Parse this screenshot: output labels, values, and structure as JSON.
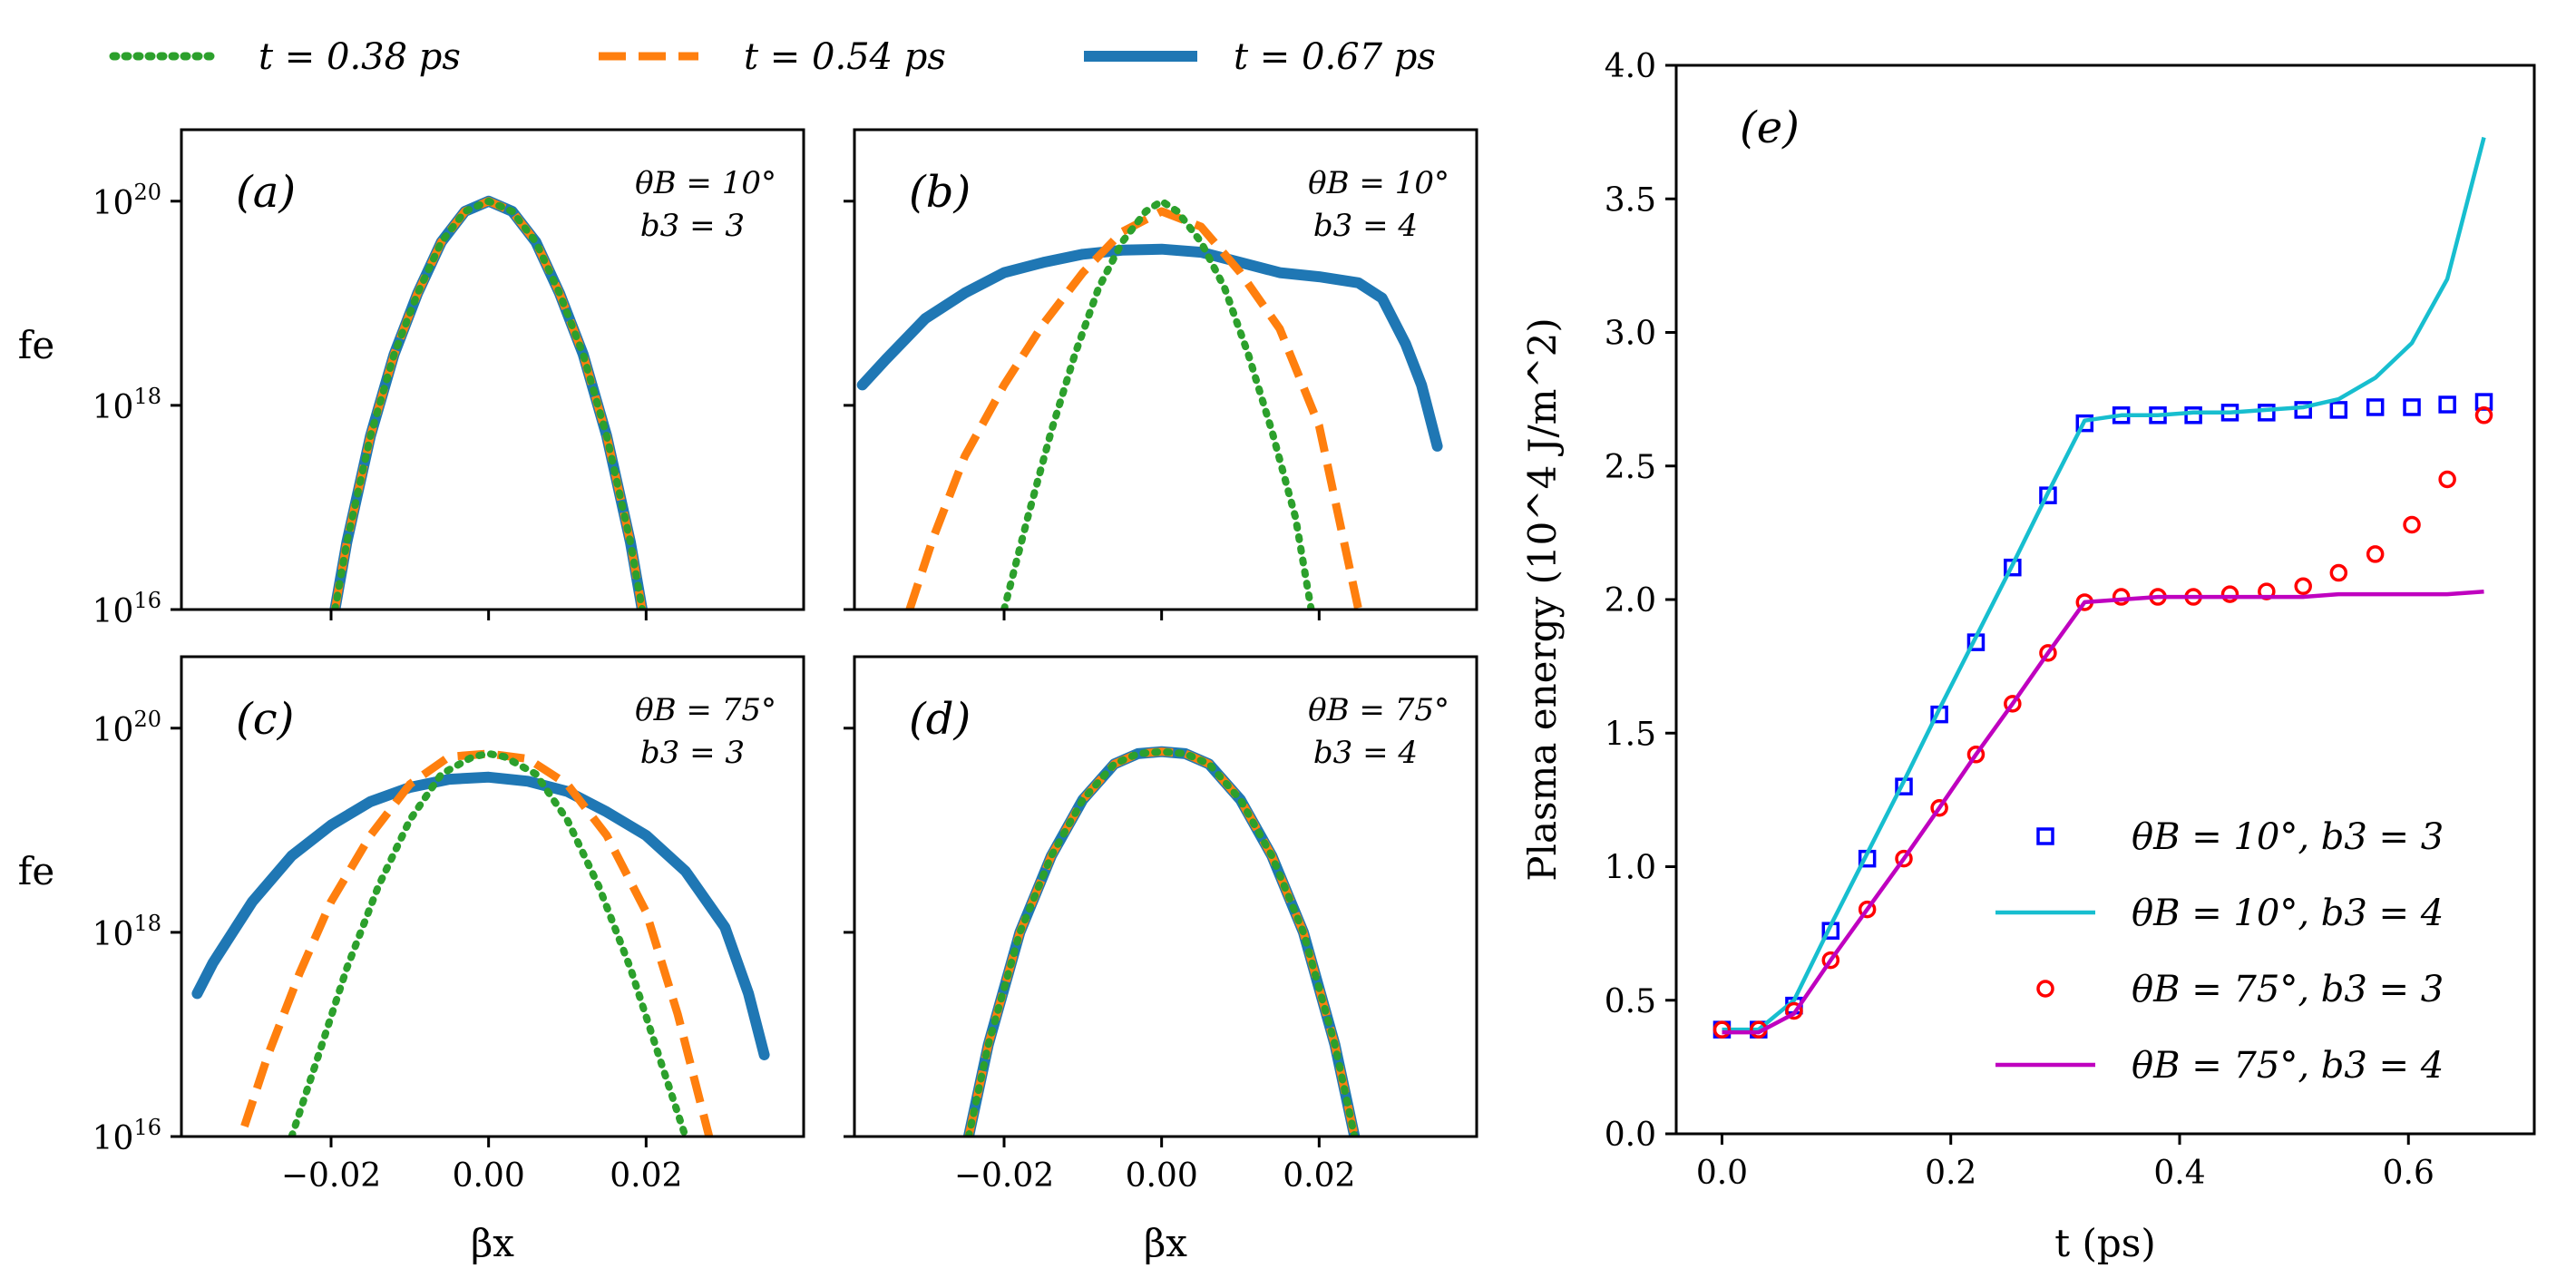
{
  "legend_top": [
    {
      "label": "t = 0.38 ps",
      "color": "#2ca02c",
      "style": "dotted"
    },
    {
      "label": "t = 0.54 ps",
      "color": "#ff7f0e",
      "style": "dashed"
    },
    {
      "label": "t = 0.67 ps",
      "color": "#1f77b4",
      "style": "solid"
    }
  ],
  "panels": [
    {
      "tag": "(a)",
      "theta": "θB = 10°",
      "b3": "b3 = 3"
    },
    {
      "tag": "(b)",
      "theta": "θB = 10°",
      "b3": "b3 = 4"
    },
    {
      "tag": "(c)",
      "theta": "θB = 75°",
      "b3": "b3 = 3"
    },
    {
      "tag": "(d)",
      "theta": "θB = 75°",
      "b3": "b3 = 4"
    }
  ],
  "dist_axes": {
    "ylabel": "fe",
    "xlabel": "βx",
    "xticks": [
      "−0.02",
      "0.00",
      "0.02"
    ],
    "yticks": [
      "10^20",
      "10^18",
      "10^16"
    ]
  },
  "chart_data": [
    {
      "type": "line",
      "panel": "a",
      "title": "(a) θB = 10°, b3 = 3",
      "xlabel": "βx",
      "ylabel": "fe",
      "xlim": [
        -0.039,
        0.04
      ],
      "ylim_log10": [
        16,
        20.7
      ],
      "series": [
        {
          "name": "t = 0.38 ps",
          "x": [
            -0.0195,
            -0.018,
            -0.015,
            -0.012,
            -0.009,
            -0.006,
            -0.003,
            0.0,
            0.003,
            0.006,
            0.009,
            0.012,
            0.015,
            0.018,
            0.0195
          ],
          "log10_y": [
            16.0,
            16.66,
            17.7,
            18.5,
            19.1,
            19.6,
            19.9,
            20.0,
            19.9,
            19.6,
            19.1,
            18.5,
            17.7,
            16.66,
            16.0
          ]
        },
        {
          "name": "t = 0.54 ps",
          "x": [
            -0.0195,
            -0.018,
            -0.015,
            -0.012,
            -0.009,
            -0.006,
            -0.003,
            0.0,
            0.003,
            0.006,
            0.009,
            0.012,
            0.015,
            0.018,
            0.0195
          ],
          "log10_y": [
            16.0,
            16.66,
            17.7,
            18.5,
            19.1,
            19.6,
            19.9,
            20.0,
            19.9,
            19.6,
            19.1,
            18.5,
            17.7,
            16.66,
            16.0
          ]
        },
        {
          "name": "t = 0.67 ps",
          "x": [
            -0.0195,
            -0.018,
            -0.015,
            -0.012,
            -0.009,
            -0.006,
            -0.003,
            0.0,
            0.003,
            0.006,
            0.009,
            0.012,
            0.015,
            0.018,
            0.0195
          ],
          "log10_y": [
            16.0,
            16.66,
            17.7,
            18.5,
            19.1,
            19.6,
            19.9,
            20.0,
            19.9,
            19.6,
            19.1,
            18.5,
            17.7,
            16.66,
            16.0
          ]
        }
      ]
    },
    {
      "type": "line",
      "panel": "b",
      "title": "(b) θB = 10°, b3 = 4",
      "xlabel": "βx",
      "ylabel": "fe",
      "xlim": [
        -0.039,
        0.04
      ],
      "ylim_log10": [
        16,
        20.7
      ],
      "series": [
        {
          "name": "t = 0.38 ps",
          "x": [
            -0.02,
            -0.017,
            -0.014,
            -0.011,
            -0.008,
            -0.005,
            -0.002,
            0.0,
            0.002,
            0.005,
            0.008,
            0.011,
            0.014,
            0.017,
            0.019
          ],
          "log10_y": [
            16.0,
            16.9,
            17.75,
            18.5,
            19.15,
            19.6,
            19.9,
            20.0,
            19.9,
            19.6,
            19.15,
            18.5,
            17.75,
            16.9,
            16.0
          ]
        },
        {
          "name": "t = 0.54 ps",
          "x": [
            -0.032,
            -0.029,
            -0.025,
            -0.02,
            -0.015,
            -0.01,
            -0.005,
            0.0,
            0.005,
            0.01,
            0.015,
            0.02,
            0.025
          ],
          "log10_y": [
            16.0,
            16.7,
            17.5,
            18.2,
            18.8,
            19.3,
            19.7,
            19.9,
            19.75,
            19.3,
            18.75,
            17.8,
            16.0
          ]
        },
        {
          "name": "t = 0.67 ps",
          "x": [
            -0.038,
            -0.035,
            -0.03,
            -0.025,
            -0.02,
            -0.015,
            -0.01,
            -0.005,
            0.0,
            0.005,
            0.01,
            0.015,
            0.02,
            0.025,
            0.028,
            0.031,
            0.033,
            0.035
          ],
          "log10_y": [
            18.2,
            18.45,
            18.85,
            19.1,
            19.3,
            19.4,
            19.48,
            19.52,
            19.53,
            19.5,
            19.4,
            19.3,
            19.26,
            19.2,
            19.05,
            18.6,
            18.2,
            17.6
          ]
        }
      ]
    },
    {
      "type": "line",
      "panel": "c",
      "title": "(c) θB = 75°, b3 = 3",
      "xlabel": "βx",
      "ylabel": "fe",
      "xlim": [
        -0.039,
        0.04
      ],
      "ylim_log10": [
        16,
        20.7
      ],
      "series": [
        {
          "name": "t = 0.38 ps",
          "x": [
            -0.025,
            -0.022,
            -0.018,
            -0.014,
            -0.01,
            -0.006,
            -0.002,
            0.0,
            0.002,
            0.006,
            0.01,
            0.014,
            0.018,
            0.022,
            0.025
          ],
          "log10_y": [
            16.0,
            16.7,
            17.65,
            18.45,
            19.1,
            19.55,
            19.72,
            19.75,
            19.72,
            19.55,
            19.1,
            18.45,
            17.65,
            16.7,
            16.0
          ]
        },
        {
          "name": "t = 0.54 ps",
          "x": [
            -0.031,
            -0.028,
            -0.024,
            -0.02,
            -0.015,
            -0.01,
            -0.005,
            0.0,
            0.005,
            0.01,
            0.015,
            0.02,
            0.024,
            0.027,
            0.028
          ],
          "log10_y": [
            16.1,
            16.8,
            17.6,
            18.3,
            18.95,
            19.45,
            19.72,
            19.75,
            19.7,
            19.45,
            18.95,
            18.2,
            17.2,
            16.3,
            16.0
          ]
        },
        {
          "name": "t = 0.67 ps",
          "x": [
            -0.037,
            -0.035,
            -0.03,
            -0.025,
            -0.02,
            -0.015,
            -0.01,
            -0.005,
            0.0,
            0.005,
            0.01,
            0.015,
            0.02,
            0.025,
            0.03,
            0.033,
            0.035
          ],
          "log10_y": [
            17.4,
            17.7,
            18.3,
            18.75,
            19.05,
            19.28,
            19.42,
            19.5,
            19.52,
            19.48,
            19.38,
            19.18,
            18.95,
            18.6,
            18.05,
            17.4,
            16.8
          ]
        }
      ]
    },
    {
      "type": "line",
      "panel": "d",
      "title": "(d) θB = 75°, b3 = 4",
      "xlabel": "βx",
      "ylabel": "fe",
      "xlim": [
        -0.039,
        0.04
      ],
      "ylim_log10": [
        16,
        20.7
      ],
      "series": [
        {
          "name": "t = 0.38 ps",
          "x": [
            -0.0245,
            -0.022,
            -0.018,
            -0.014,
            -0.01,
            -0.006,
            -0.003,
            0.0,
            0.003,
            0.006,
            0.01,
            0.014,
            0.018,
            0.022,
            0.0245
          ],
          "log10_y": [
            16.0,
            16.9,
            18.0,
            18.75,
            19.3,
            19.65,
            19.75,
            19.77,
            19.75,
            19.65,
            19.3,
            18.75,
            18.0,
            16.9,
            16.0
          ]
        },
        {
          "name": "t = 0.54 ps",
          "x": [
            -0.0245,
            -0.022,
            -0.018,
            -0.014,
            -0.01,
            -0.006,
            -0.003,
            0.0,
            0.003,
            0.006,
            0.01,
            0.014,
            0.018,
            0.022,
            0.0245
          ],
          "log10_y": [
            16.0,
            16.9,
            18.0,
            18.75,
            19.3,
            19.65,
            19.75,
            19.77,
            19.75,
            19.65,
            19.3,
            18.75,
            18.0,
            16.9,
            16.0
          ]
        },
        {
          "name": "t = 0.67 ps",
          "x": [
            -0.0245,
            -0.022,
            -0.018,
            -0.014,
            -0.01,
            -0.006,
            -0.003,
            0.0,
            0.003,
            0.006,
            0.01,
            0.014,
            0.018,
            0.022,
            0.0245
          ],
          "log10_y": [
            16.0,
            16.9,
            18.0,
            18.75,
            19.3,
            19.65,
            19.75,
            19.77,
            19.75,
            19.65,
            19.3,
            18.75,
            18.0,
            16.9,
            16.0
          ]
        }
      ]
    },
    {
      "type": "line",
      "panel": "e",
      "title": "(e)",
      "xlabel": "t (ps)",
      "ylabel": "Plasma energy (10^4 J/m^2)",
      "xlim": [
        -0.04,
        0.71
      ],
      "ylim": [
        0.0,
        4.0
      ],
      "xticks": [
        "0.0",
        "0.2",
        "0.4",
        "0.6"
      ],
      "yticks": [
        "0.0",
        "0.5",
        "1.0",
        "1.5",
        "2.0",
        "2.5",
        "3.0",
        "3.5",
        "4.0"
      ],
      "series": [
        {
          "name": "θB = 10°, b3 = 3",
          "style": "square-markers",
          "color": "#0000ff",
          "x": [
            0.0,
            0.032,
            0.063,
            0.095,
            0.127,
            0.159,
            0.19,
            0.222,
            0.254,
            0.285,
            0.317,
            0.349,
            0.381,
            0.412,
            0.444,
            0.476,
            0.508,
            0.539,
            0.571,
            0.603,
            0.634,
            0.666
          ],
          "y": [
            0.39,
            0.39,
            0.48,
            0.76,
            1.03,
            1.3,
            1.57,
            1.84,
            2.12,
            2.39,
            2.66,
            2.69,
            2.69,
            2.69,
            2.7,
            2.7,
            2.71,
            2.71,
            2.72,
            2.72,
            2.73,
            2.74
          ]
        },
        {
          "name": "θB = 10°, b3 = 4",
          "style": "line",
          "color": "#17becf",
          "x": [
            0.0,
            0.032,
            0.063,
            0.095,
            0.127,
            0.159,
            0.19,
            0.222,
            0.254,
            0.285,
            0.317,
            0.349,
            0.381,
            0.412,
            0.444,
            0.476,
            0.508,
            0.539,
            0.571,
            0.603,
            0.634,
            0.666
          ],
          "y": [
            0.39,
            0.39,
            0.5,
            0.78,
            1.05,
            1.32,
            1.59,
            1.86,
            2.13,
            2.4,
            2.67,
            2.69,
            2.69,
            2.7,
            2.7,
            2.71,
            2.72,
            2.75,
            2.83,
            2.96,
            3.2,
            3.73
          ]
        },
        {
          "name": "θB = 75°, b3 = 3",
          "style": "circle-markers",
          "color": "#ff0000",
          "x": [
            0.0,
            0.032,
            0.063,
            0.095,
            0.127,
            0.159,
            0.19,
            0.222,
            0.254,
            0.285,
            0.317,
            0.349,
            0.381,
            0.412,
            0.444,
            0.476,
            0.508,
            0.539,
            0.571,
            0.603,
            0.634,
            0.666
          ],
          "y": [
            0.39,
            0.39,
            0.46,
            0.65,
            0.84,
            1.03,
            1.22,
            1.42,
            1.61,
            1.8,
            1.99,
            2.01,
            2.01,
            2.01,
            2.02,
            2.03,
            2.05,
            2.1,
            2.17,
            2.28,
            2.45,
            2.69
          ]
        },
        {
          "name": "θB = 75°, b3 = 4",
          "style": "line",
          "color": "#bf00bf",
          "x": [
            0.0,
            0.032,
            0.063,
            0.095,
            0.127,
            0.159,
            0.19,
            0.222,
            0.254,
            0.285,
            0.317,
            0.349,
            0.381,
            0.412,
            0.444,
            0.476,
            0.508,
            0.539,
            0.571,
            0.603,
            0.634,
            0.666
          ],
          "y": [
            0.38,
            0.38,
            0.45,
            0.65,
            0.84,
            1.03,
            1.22,
            1.42,
            1.61,
            1.8,
            1.99,
            2.0,
            2.01,
            2.01,
            2.01,
            2.01,
            2.01,
            2.02,
            2.02,
            2.02,
            2.02,
            2.03
          ]
        }
      ]
    }
  ]
}
